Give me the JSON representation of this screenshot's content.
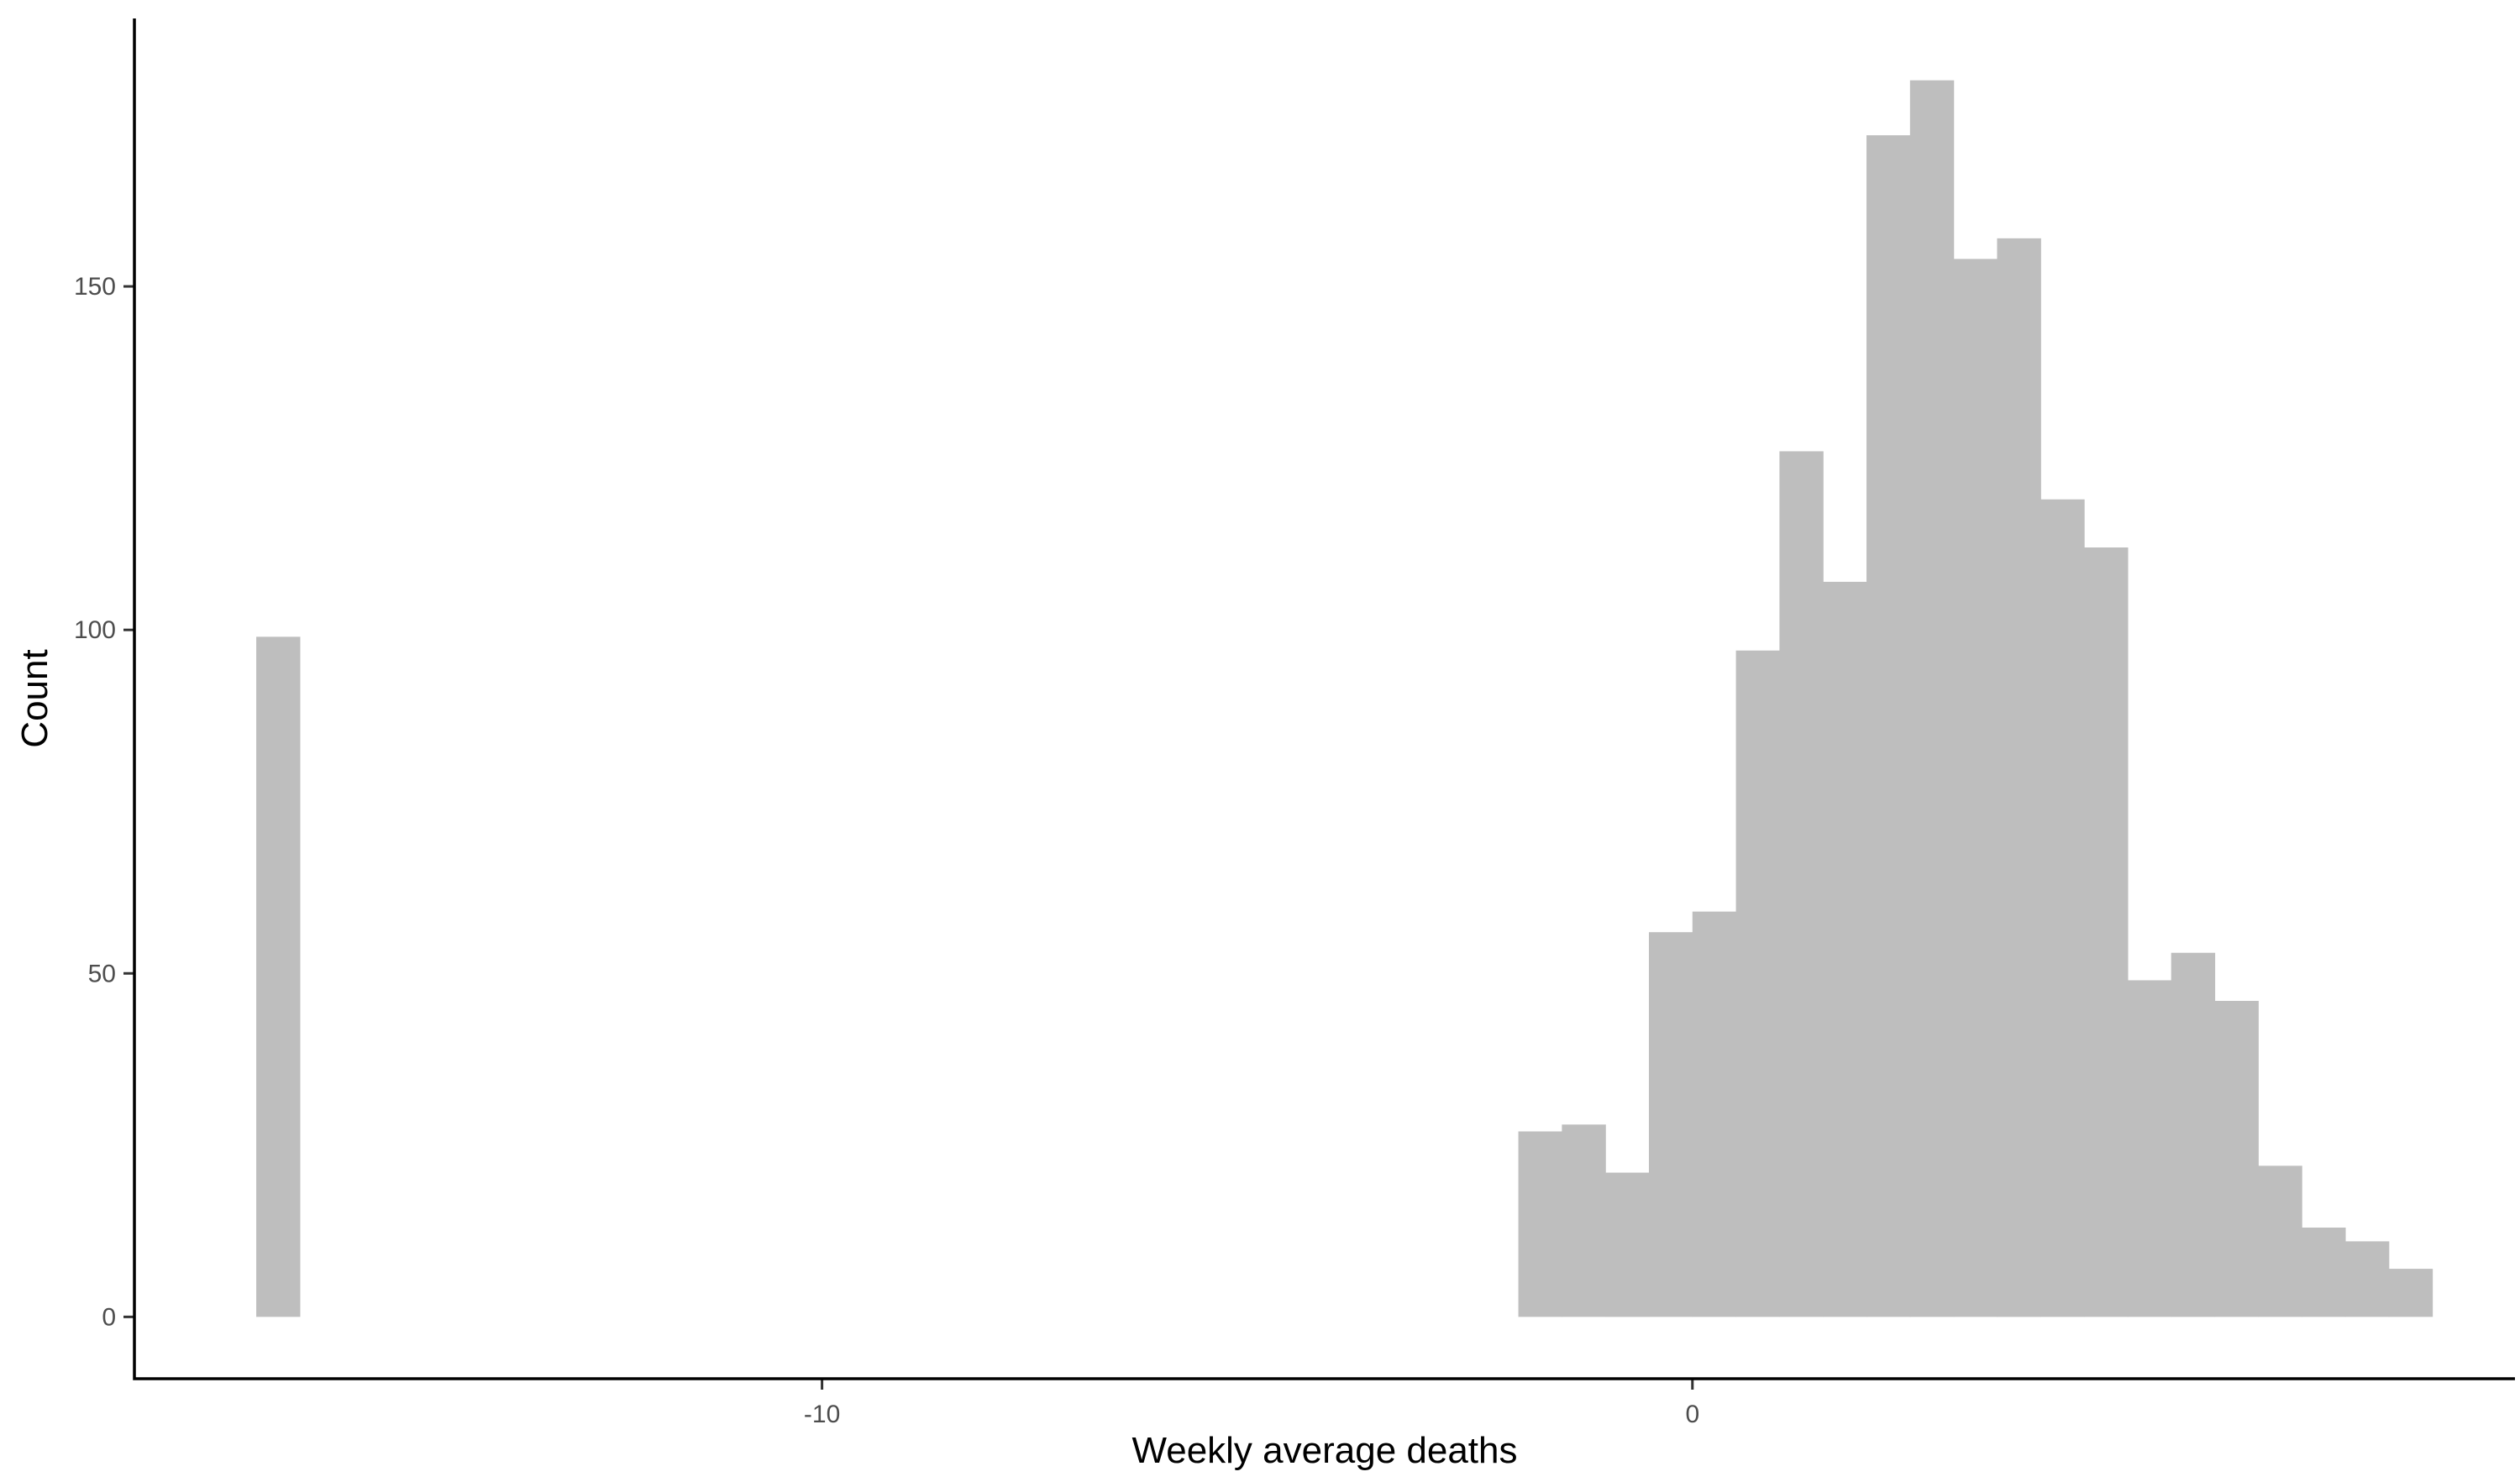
{
  "chart_data": {
    "type": "bar",
    "subtype": "histogram",
    "xlabel": "Weekly average deaths",
    "ylabel": "Count",
    "xlim": [
      -17.9,
      9.45
    ],
    "ylim": [
      -9,
      189
    ],
    "x_ticks": [
      {
        "value": -10,
        "label": "-10"
      },
      {
        "value": 0,
        "label": "0"
      }
    ],
    "y_ticks": [
      {
        "value": 0,
        "label": "0"
      },
      {
        "value": 50,
        "label": "50"
      },
      {
        "value": 100,
        "label": "100"
      },
      {
        "value": 150,
        "label": "150"
      }
    ],
    "bin_width": 0.5,
    "bar_color": "#bebebe",
    "grid": false,
    "bins": [
      {
        "x_start": -16.5,
        "x_end": -16.0,
        "count": 99
      },
      {
        "x_start": -2.0,
        "x_end": -1.5,
        "count": 27
      },
      {
        "x_start": -1.5,
        "x_end": -1.0,
        "count": 28
      },
      {
        "x_start": -1.0,
        "x_end": -0.5,
        "count": 21
      },
      {
        "x_start": -0.5,
        "x_end": 0.0,
        "count": 56
      },
      {
        "x_start": 0.0,
        "x_end": 0.5,
        "count": 59
      },
      {
        "x_start": 0.5,
        "x_end": 1.0,
        "count": 97
      },
      {
        "x_start": 1.0,
        "x_end": 1.5,
        "count": 126
      },
      {
        "x_start": 1.5,
        "x_end": 2.0,
        "count": 107
      },
      {
        "x_start": 2.0,
        "x_end": 2.5,
        "count": 172
      },
      {
        "x_start": 2.5,
        "x_end": 3.0,
        "count": 180
      },
      {
        "x_start": 3.0,
        "x_end": 3.5,
        "count": 154
      },
      {
        "x_start": 3.5,
        "x_end": 4.0,
        "count": 157
      },
      {
        "x_start": 4.0,
        "x_end": 4.5,
        "count": 119
      },
      {
        "x_start": 4.5,
        "x_end": 5.0,
        "count": 112
      },
      {
        "x_start": 5.0,
        "x_end": 5.5,
        "count": 49
      },
      {
        "x_start": 5.5,
        "x_end": 6.0,
        "count": 53
      },
      {
        "x_start": 6.0,
        "x_end": 6.5,
        "count": 46
      },
      {
        "x_start": 6.5,
        "x_end": 7.0,
        "count": 22
      },
      {
        "x_start": 7.0,
        "x_end": 7.5,
        "count": 13
      },
      {
        "x_start": 7.5,
        "x_end": 8.0,
        "count": 11
      },
      {
        "x_start": 8.0,
        "x_end": 8.5,
        "count": 7
      }
    ]
  }
}
